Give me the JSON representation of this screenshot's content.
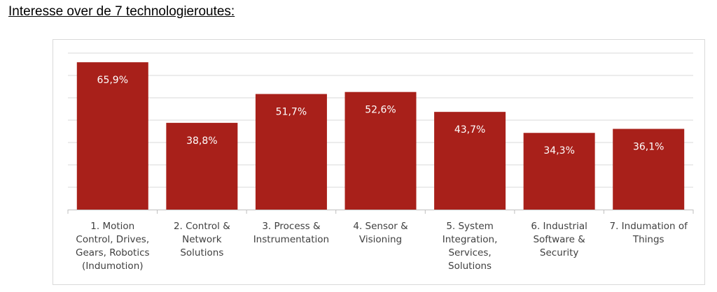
{
  "heading": "Interesse over de 7 technologieroutes:",
  "chart_data": {
    "type": "bar",
    "title": "",
    "xlabel": "",
    "ylabel": "",
    "ylim": [
      0,
      70
    ],
    "grid": true,
    "bar_color": "#a8201a",
    "categories": [
      [
        "1. Motion",
        "Control, Drives,",
        "Gears, Robotics",
        "(Indumotion)"
      ],
      [
        "2. Control &",
        "Network",
        "Solutions"
      ],
      [
        "3. Process &",
        "Instrumentation"
      ],
      [
        "4. Sensor &",
        "Visioning"
      ],
      [
        "5. System",
        "Integration,",
        "Services,",
        "Solutions"
      ],
      [
        "6. Industrial",
        "Software &",
        "Security"
      ],
      [
        "7. Indumation of",
        "Things"
      ]
    ],
    "values": [
      65.9,
      38.8,
      51.7,
      52.6,
      43.7,
      34.3,
      36.1
    ],
    "data_labels": [
      "65,9%",
      "38,8%",
      "51,7%",
      "52,6%",
      "43,7%",
      "34,3%",
      "36,1%"
    ]
  }
}
